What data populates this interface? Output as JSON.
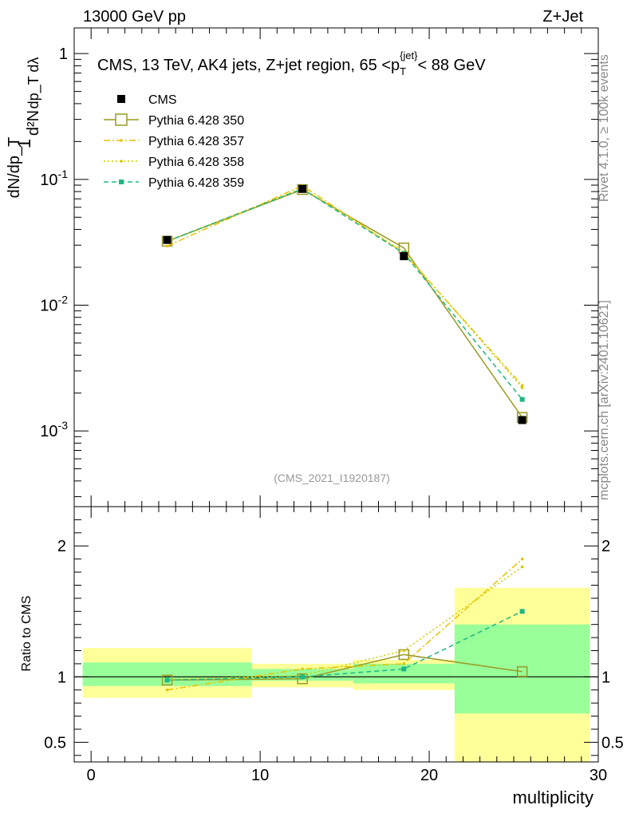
{
  "header": {
    "left": "13000 GeV pp",
    "right": "Z+Jet"
  },
  "side_labels": {
    "rivet": "Rivet 4.1.0, ≥ 100k events",
    "source": "mcplots.cern.ch [arXiv:2401.10621]"
  },
  "chart_data": [
    {
      "type": "line",
      "panel": "main",
      "title": "CMS, 13 TeV, AK4 jets, Z+jet region, 65 <p_T^{jet}< 88 GeV",
      "annotation": "(CMS_2021_I1920187)",
      "ylabel": "1/(dN/dp_T) d²N/(dp_T dλ)",
      "y_scale": "log",
      "xlim": [
        -1,
        30
      ],
      "ylim": [
        0.00025,
        1.6
      ],
      "y_ticks": [
        {
          "value": 1,
          "label": "1"
        },
        {
          "value": 0.1,
          "label": "10^{-1}"
        },
        {
          "value": 0.01,
          "label": "10^{-2}"
        },
        {
          "value": 0.001,
          "label": "10^{-3}"
        }
      ],
      "x": [
        4.5,
        12.5,
        18.5,
        25.5
      ],
      "series": [
        {
          "name": "CMS",
          "color": "#000000",
          "marker": "filled-square",
          "style": "none",
          "values": [
            0.033,
            0.084,
            0.0245,
            0.00122
          ]
        },
        {
          "name": "Pythia 6.428 350",
          "color": "#9a9a23",
          "marker": "open-square",
          "style": "solid",
          "values": [
            0.0322,
            0.083,
            0.0285,
            0.00128
          ]
        },
        {
          "name": "Pythia 6.428 357",
          "color": "#e8c100",
          "marker": "small-dot",
          "style": "dashdot",
          "values": [
            0.0295,
            0.089,
            0.026,
            0.0023
          ]
        },
        {
          "name": "Pythia 6.428 358",
          "color": "#cccc00",
          "marker": "small-dot",
          "style": "dotted",
          "values": [
            0.0323,
            0.085,
            0.0265,
            0.0022
          ]
        },
        {
          "name": "Pythia 6.428 359",
          "color": "#1fb77f",
          "marker": "filled-square-small",
          "style": "dashed",
          "values": [
            0.0322,
            0.084,
            0.0258,
            0.00178
          ]
        }
      ]
    },
    {
      "type": "line",
      "panel": "ratio",
      "ylabel": "Ratio to CMS",
      "xlabel": "multiplicity",
      "xlim": [
        -1,
        30
      ],
      "ylim": [
        0.35,
        2.3
      ],
      "x_ticks": [
        0,
        10,
        20,
        30
      ],
      "y_ticks": [
        0.5,
        1,
        2
      ],
      "reference": 1,
      "bands": [
        {
          "x": [
            -0.5,
            9.5
          ],
          "inner": [
            0.93,
            1.11
          ],
          "outer": [
            0.84,
            1.22
          ]
        },
        {
          "x": [
            9.5,
            15.5
          ],
          "inner": [
            0.97,
            1.06
          ],
          "outer": [
            0.92,
            1.1
          ]
        },
        {
          "x": [
            15.5,
            21.5
          ],
          "inner": [
            0.95,
            1.1
          ],
          "outer": [
            0.9,
            1.13
          ]
        },
        {
          "x": [
            21.5,
            29.5
          ],
          "inner": [
            0.72,
            1.4
          ],
          "outer": [
            0.35,
            1.68
          ]
        }
      ],
      "x": [
        4.5,
        12.5,
        18.5,
        25.5
      ],
      "series": [
        {
          "name": "Pythia 6.428 350",
          "values": [
            0.975,
            0.985,
            1.17,
            1.04
          ]
        },
        {
          "name": "Pythia 6.428 357",
          "values": [
            0.9,
            1.06,
            1.1,
            1.9
          ]
        },
        {
          "name": "Pythia 6.428 358",
          "values": [
            0.98,
            1.01,
            1.2,
            1.84
          ]
        },
        {
          "name": "Pythia 6.428 359",
          "values": [
            0.975,
            1.0,
            1.06,
            1.5
          ]
        }
      ]
    }
  ]
}
